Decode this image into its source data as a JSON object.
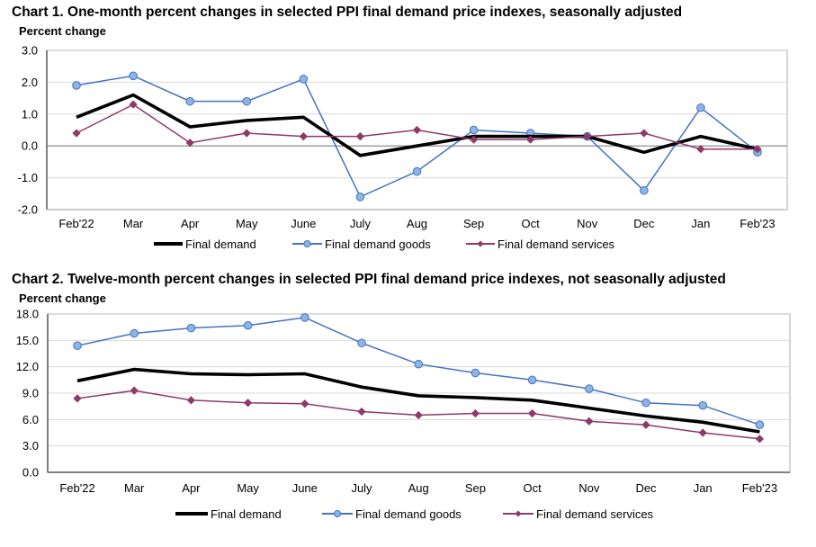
{
  "colors": {
    "final_demand": "#000000",
    "goods_line": "#4472C4",
    "goods_marker": "#8DB4E2",
    "services": "#8E3A68",
    "gridline": "#D9D9D9",
    "zero_line": "#808080",
    "axis": "#808080"
  },
  "chart_data": [
    {
      "type": "line",
      "title": "Chart 1. One-month percent changes in selected PPI final demand price indexes, seasonally adjusted",
      "ylabel": "Percent change",
      "xlabel": "",
      "categories": [
        "Feb'22",
        "Mar",
        "Apr",
        "May",
        "June",
        "July",
        "Aug",
        "Sep",
        "Oct",
        "Nov",
        "Dec",
        "Jan",
        "Feb'23"
      ],
      "ylim": [
        -2.0,
        3.0
      ],
      "yticks": [
        3.0,
        2.0,
        1.0,
        0.0,
        -1.0,
        -2.0
      ],
      "ytick_labels": [
        "3.0",
        "2.0",
        "1.0",
        "0.0",
        "-1.0",
        "-2.0"
      ],
      "grid": true,
      "legend_position": "bottom",
      "series": [
        {
          "key": "final_demand",
          "name": "Final demand",
          "marker": "none",
          "values": [
            0.9,
            1.6,
            0.6,
            0.8,
            0.9,
            -0.3,
            0.0,
            0.3,
            0.3,
            0.3,
            -0.2,
            0.3,
            -0.1
          ]
        },
        {
          "key": "goods",
          "name": "Final demand goods",
          "marker": "circle",
          "values": [
            1.9,
            2.2,
            1.4,
            1.4,
            2.1,
            -1.6,
            -0.8,
            0.5,
            0.4,
            0.3,
            -1.4,
            1.2,
            -0.2
          ]
        },
        {
          "key": "services",
          "name": "Final demand services",
          "marker": "diamond",
          "values": [
            0.4,
            1.3,
            0.1,
            0.4,
            0.3,
            0.3,
            0.5,
            0.2,
            0.2,
            0.3,
            0.4,
            -0.1,
            -0.1
          ]
        }
      ]
    },
    {
      "type": "line",
      "title": "Chart 2. Twelve-month percent changes in selected PPI final demand price indexes, not seasonally adjusted",
      "ylabel": "Percent change",
      "xlabel": "",
      "categories": [
        "Feb'22",
        "Mar",
        "Apr",
        "May",
        "June",
        "July",
        "Aug",
        "Sep",
        "Oct",
        "Nov",
        "Dec",
        "Jan",
        "Feb'23"
      ],
      "ylim": [
        0.0,
        18.0
      ],
      "yticks": [
        18.0,
        15.0,
        12.0,
        9.0,
        6.0,
        3.0,
        0.0
      ],
      "ytick_labels": [
        "18.0",
        "15.0",
        "12.0",
        "9.0",
        "6.0",
        "3.0",
        "0.0"
      ],
      "grid": true,
      "legend_position": "bottom",
      "series": [
        {
          "key": "final_demand",
          "name": "Final demand",
          "marker": "none",
          "values": [
            10.4,
            11.7,
            11.2,
            11.1,
            11.2,
            9.7,
            8.7,
            8.5,
            8.2,
            7.3,
            6.4,
            5.7,
            4.6
          ]
        },
        {
          "key": "goods",
          "name": "Final demand goods",
          "marker": "circle",
          "values": [
            14.4,
            15.8,
            16.4,
            16.7,
            17.6,
            14.7,
            12.3,
            11.3,
            10.5,
            9.5,
            7.9,
            7.6,
            5.4
          ]
        },
        {
          "key": "services",
          "name": "Final demand services",
          "marker": "diamond",
          "values": [
            8.4,
            9.3,
            8.2,
            7.9,
            7.8,
            6.9,
            6.5,
            6.7,
            6.7,
            5.8,
            5.4,
            4.5,
            3.8
          ]
        }
      ]
    }
  ]
}
